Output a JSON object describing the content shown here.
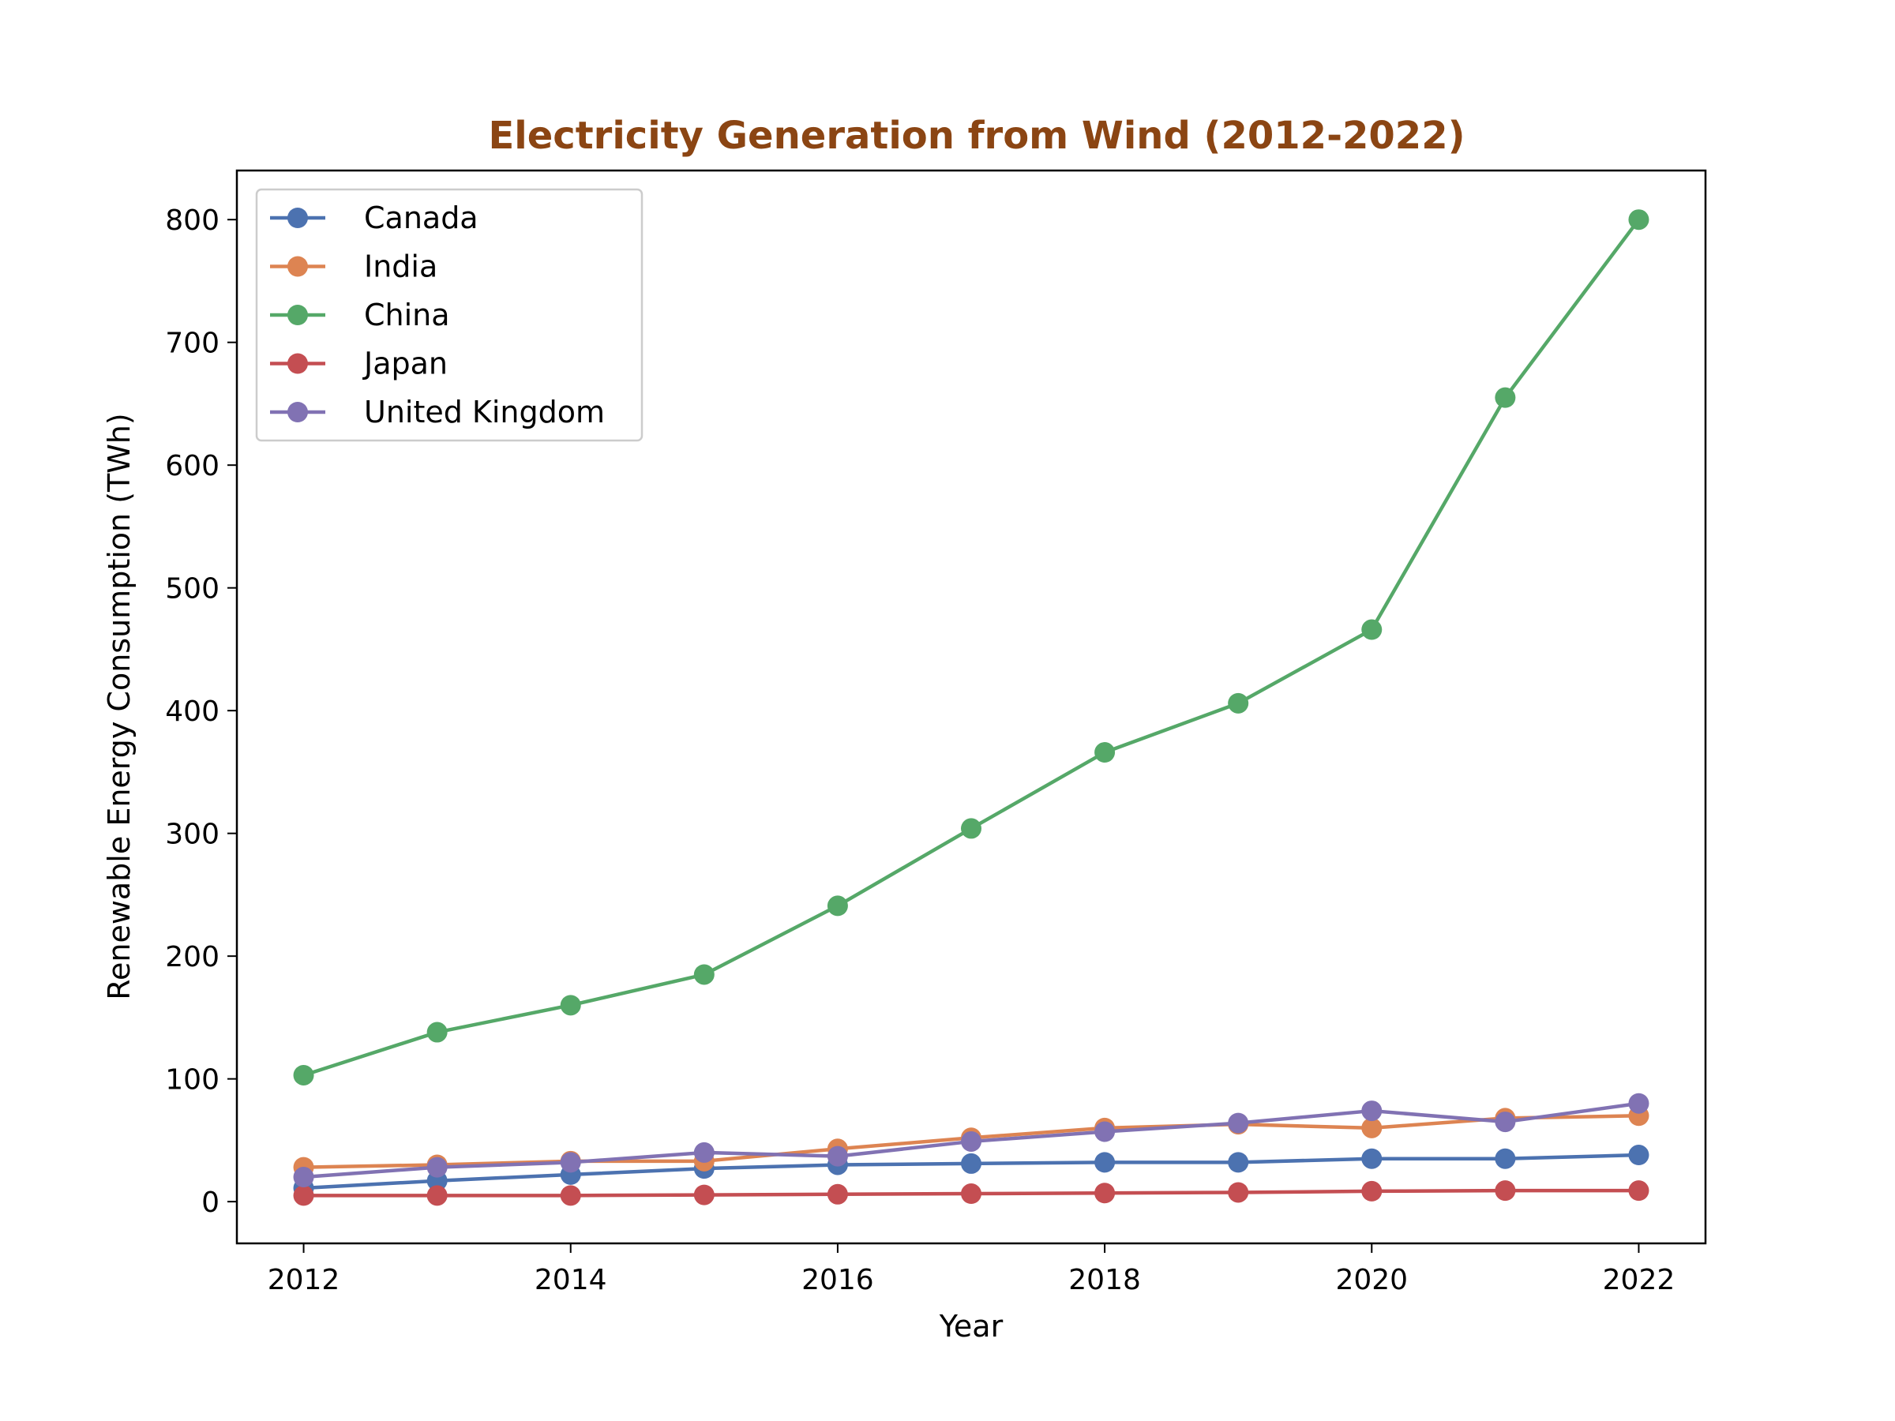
{
  "chart_data": {
    "type": "line",
    "title": "Electricity Generation from Wind (2012-2022)",
    "title_color": "#8B4513",
    "xlabel": "Year",
    "ylabel": "Renewable Energy Consumption (TWh)",
    "x": [
      2012,
      2013,
      2014,
      2015,
      2016,
      2017,
      2018,
      2019,
      2020,
      2021,
      2022
    ],
    "xlim": [
      2011.5,
      2022.5
    ],
    "ylim": [
      -34,
      840
    ],
    "x_ticks": [
      2012,
      2014,
      2016,
      2018,
      2020,
      2022
    ],
    "y_ticks": [
      0,
      100,
      200,
      300,
      400,
      500,
      600,
      700,
      800
    ],
    "grid": false,
    "legend_position": "top-left",
    "series": [
      {
        "name": "Canada",
        "color": "#4C72B0",
        "values": [
          11,
          17,
          22,
          27,
          30,
          31,
          32,
          32,
          35,
          35,
          38
        ]
      },
      {
        "name": "India",
        "color": "#DD8452",
        "values": [
          28,
          30,
          33,
          33,
          43,
          52,
          60,
          63,
          60,
          68,
          70
        ]
      },
      {
        "name": "China",
        "color": "#55A868",
        "values": [
          103,
          138,
          160,
          185,
          241,
          304,
          366,
          406,
          466,
          655,
          800
        ]
      },
      {
        "name": "Japan",
        "color": "#C44E52",
        "values": [
          5,
          5,
          5,
          5.5,
          6,
          6.5,
          7,
          7.5,
          8.5,
          9,
          9
        ]
      },
      {
        "name": "United Kingdom",
        "color": "#8172B3",
        "values": [
          20,
          28,
          32,
          40,
          37,
          49,
          57,
          64,
          74,
          65,
          80
        ]
      }
    ]
  }
}
